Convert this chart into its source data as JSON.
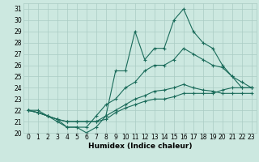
{
  "xlabel": "Humidex (Indice chaleur)",
  "background_color": "#cce8e0",
  "grid_color": "#aaccc4",
  "line_color": "#1a6b5a",
  "x": [
    0,
    1,
    2,
    3,
    4,
    5,
    6,
    7,
    8,
    9,
    10,
    11,
    12,
    13,
    14,
    15,
    16,
    17,
    18,
    19,
    20,
    21,
    22,
    23
  ],
  "series_max": [
    22,
    22,
    21.5,
    21,
    20.5,
    20.5,
    20,
    20.5,
    21.5,
    25.5,
    25.5,
    29,
    26.5,
    27.5,
    27.5,
    30,
    31,
    29,
    28,
    27.5,
    26,
    25,
    24,
    24
  ],
  "series_upper": [
    22,
    21.8,
    21.5,
    21.2,
    20.5,
    20.5,
    20.5,
    21.5,
    22.5,
    23,
    24,
    24.5,
    25.5,
    26,
    26,
    26.5,
    27.5,
    27,
    26.5,
    26,
    25.8,
    25,
    24.5,
    24
  ],
  "series_lower": [
    22,
    21.8,
    21.5,
    21.2,
    21,
    21,
    21,
    21,
    21.5,
    22,
    22.5,
    23,
    23.3,
    23.7,
    23.8,
    24,
    24.3,
    24,
    23.8,
    23.7,
    23.5,
    23.5,
    23.5,
    23.5
  ],
  "series_min": [
    22,
    21.8,
    21.5,
    21.2,
    21,
    21,
    21,
    21,
    21.2,
    21.8,
    22.2,
    22.5,
    22.8,
    23,
    23,
    23.2,
    23.5,
    23.5,
    23.5,
    23.5,
    23.8,
    24,
    24,
    24
  ],
  "xlim": [
    -0.5,
    23.5
  ],
  "ylim": [
    20,
    31.5
  ],
  "xticks": [
    0,
    1,
    2,
    3,
    4,
    5,
    6,
    7,
    8,
    9,
    10,
    11,
    12,
    13,
    14,
    15,
    16,
    17,
    18,
    19,
    20,
    21,
    22,
    23
  ],
  "yticks": [
    20,
    21,
    22,
    23,
    24,
    25,
    26,
    27,
    28,
    29,
    30,
    31
  ],
  "fontsize_label": 6.5,
  "fontsize_tick": 5.5
}
